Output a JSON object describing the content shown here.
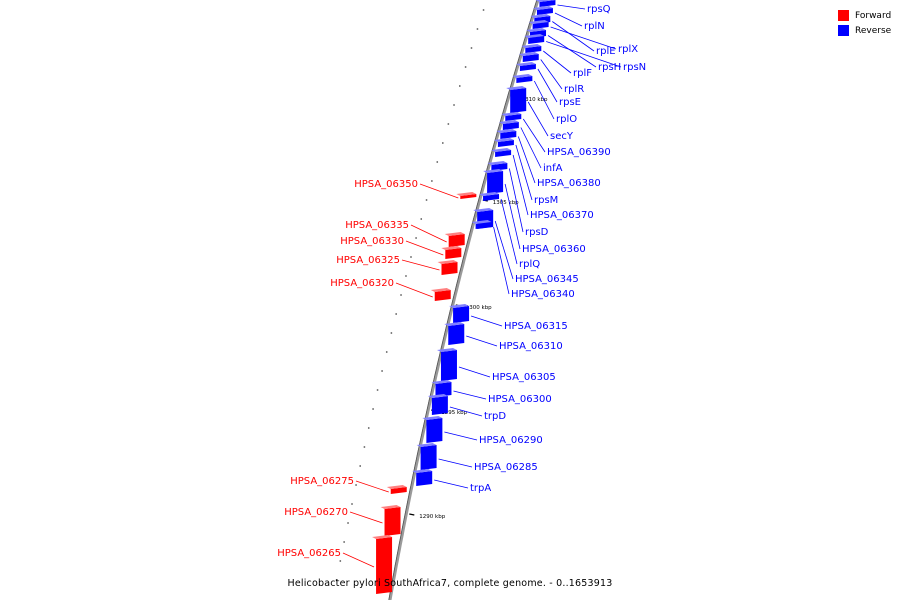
{
  "legend": [
    {
      "label": "Forward",
      "color": "#ff0000"
    },
    {
      "label": "Reverse",
      "color": "#0000ff"
    }
  ],
  "caption": "Helicobacter pylori SouthAfrica7, complete genome. - 0..1653913",
  "colors": {
    "forward": "#ff0000",
    "reverse": "#0000ff",
    "backbone": "#808080"
  },
  "ticks": [
    "1310 kbp",
    "1305 kbp",
    "1300 kbp",
    "1295 kbp",
    "1290 kbp"
  ],
  "forward_genes": [
    "HPSA_06350",
    "HPSA_06335",
    "HPSA_06330",
    "HPSA_06325",
    "HPSA_06320",
    "HPSA_06275",
    "HPSA_06270",
    "HPSA_06265"
  ],
  "reverse_genes": [
    "rpsQ",
    "rplN",
    "rplE",
    "rplX",
    "rpsH",
    "rpsN",
    "rplF",
    "rplR",
    "rpsE",
    "rplO",
    "secY",
    "HPSA_06390",
    "infA",
    "HPSA_06380",
    "rpsM",
    "HPSA_06370",
    "rpsD",
    "HPSA_06360",
    "rplQ",
    "HPSA_06345",
    "HPSA_06340",
    "HPSA_06315",
    "HPSA_06310",
    "HPSA_06305",
    "HPSA_06300",
    "trpD",
    "HPSA_06290",
    "HPSA_06285",
    "trpA"
  ]
}
